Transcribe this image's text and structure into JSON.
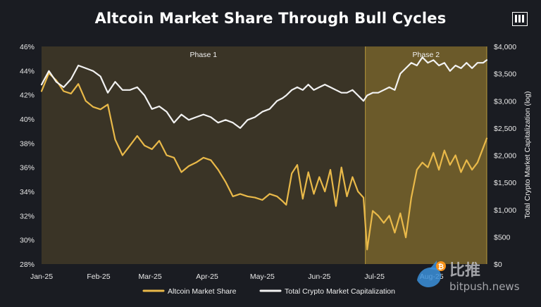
{
  "title": "Altcoin Market Share Through Bull Cycles",
  "logo": "brand-logo",
  "watermark": {
    "text_cn": "比推",
    "text_en": "bitpush.news"
  },
  "colors": {
    "background": "#1a1c22",
    "phase1_fill": "#3a3426",
    "phase2_fill": "#6b5a2a",
    "phase_border": "#b89a3c",
    "altcoin_line": "#e9b949",
    "cap_line": "#f2f2f2"
  },
  "chart_data": {
    "type": "line",
    "title": "Altcoin Market Share Through Bull Cycles",
    "x_ticks": [
      "Jan-25",
      "Feb-25",
      "Mar-25",
      "Apr-25",
      "May-25",
      "Jun-25",
      "Jul-25",
      "Aug-25"
    ],
    "x_range": [
      "2025-01-01",
      "2025-08-31"
    ],
    "y_left": {
      "ticks": [
        "28%",
        "30%",
        "32%",
        "34%",
        "36%",
        "38%",
        "40%",
        "42%",
        "44%",
        "46%"
      ],
      "ylim": [
        28,
        46
      ]
    },
    "y_right": {
      "label": "Total Crypto Market Capitalization (log)",
      "ticks": [
        "$0",
        "$500",
        "$1,000",
        "$1,500",
        "$2,000",
        "$2,500",
        "$3,000",
        "$3,500",
        "$4,000"
      ],
      "ylim": [
        0,
        4000
      ]
    },
    "phases": [
      {
        "label": "Phase 1",
        "start": "2025-01-01",
        "end": "2025-06-26"
      },
      {
        "label": "Phase 2",
        "start": "2025-06-26",
        "end": "2025-08-31"
      }
    ],
    "legend": {
      "position": "bottom-center"
    },
    "grid": false,
    "series": [
      {
        "name": "Altcoin Market Share",
        "axis": "left",
        "x": [
          "2025-01-01",
          "2025-01-05",
          "2025-01-09",
          "2025-01-13",
          "2025-01-17",
          "2025-01-21",
          "2025-01-25",
          "2025-01-29",
          "2025-02-02",
          "2025-02-06",
          "2025-02-10",
          "2025-02-14",
          "2025-02-18",
          "2025-02-22",
          "2025-02-26",
          "2025-03-02",
          "2025-03-06",
          "2025-03-10",
          "2025-03-14",
          "2025-03-18",
          "2025-03-22",
          "2025-03-26",
          "2025-03-30",
          "2025-04-03",
          "2025-04-07",
          "2025-04-11",
          "2025-04-15",
          "2025-04-19",
          "2025-04-23",
          "2025-04-27",
          "2025-05-01",
          "2025-05-05",
          "2025-05-09",
          "2025-05-12",
          "2025-05-14",
          "2025-05-17",
          "2025-05-20",
          "2025-05-23",
          "2025-05-26",
          "2025-05-29",
          "2025-06-01",
          "2025-06-04",
          "2025-06-07",
          "2025-06-10",
          "2025-06-13",
          "2025-06-16",
          "2025-06-19",
          "2025-06-22",
          "2025-06-25",
          "2025-06-27",
          "2025-06-30",
          "2025-07-03",
          "2025-07-06",
          "2025-07-09",
          "2025-07-12",
          "2025-07-15",
          "2025-07-18",
          "2025-07-21",
          "2025-07-24",
          "2025-07-27",
          "2025-07-30",
          "2025-08-02",
          "2025-08-05",
          "2025-08-08",
          "2025-08-11",
          "2025-08-14",
          "2025-08-17",
          "2025-08-20",
          "2025-08-23",
          "2025-08-26",
          "2025-08-29",
          "2025-08-31"
        ],
        "values": [
          42.3,
          43.8,
          43.2,
          42.3,
          42.1,
          42.9,
          41.5,
          41.0,
          40.8,
          41.2,
          38.3,
          37.0,
          37.8,
          38.6,
          37.8,
          37.5,
          38.2,
          37.0,
          36.8,
          35.6,
          36.1,
          36.4,
          36.8,
          36.6,
          35.8,
          34.8,
          33.6,
          33.8,
          33.6,
          33.5,
          33.3,
          33.8,
          33.6,
          33.2,
          32.9,
          35.5,
          36.2,
          33.4,
          35.6,
          33.8,
          35.2,
          34.0,
          35.8,
          32.8,
          36.0,
          33.6,
          35.2,
          34.0,
          33.5,
          29.2,
          32.4,
          32.0,
          31.4,
          32.0,
          30.6,
          32.2,
          30.2,
          33.5,
          35.8,
          36.4,
          36.0,
          37.2,
          35.8,
          37.4,
          36.2,
          37.0,
          35.6,
          36.6,
          35.8,
          36.4,
          37.6,
          38.4
        ]
      },
      {
        "name": "Total Crypto Market Capitalization",
        "axis": "right",
        "x": [
          "2025-01-01",
          "2025-01-05",
          "2025-01-09",
          "2025-01-13",
          "2025-01-17",
          "2025-01-21",
          "2025-01-25",
          "2025-01-29",
          "2025-02-02",
          "2025-02-06",
          "2025-02-10",
          "2025-02-14",
          "2025-02-18",
          "2025-02-22",
          "2025-02-26",
          "2025-03-02",
          "2025-03-06",
          "2025-03-10",
          "2025-03-14",
          "2025-03-18",
          "2025-03-22",
          "2025-03-26",
          "2025-03-30",
          "2025-04-03",
          "2025-04-07",
          "2025-04-11",
          "2025-04-15",
          "2025-04-19",
          "2025-04-23",
          "2025-04-27",
          "2025-05-01",
          "2025-05-05",
          "2025-05-09",
          "2025-05-12",
          "2025-05-14",
          "2025-05-17",
          "2025-05-20",
          "2025-05-23",
          "2025-05-26",
          "2025-05-29",
          "2025-06-01",
          "2025-06-04",
          "2025-06-07",
          "2025-06-10",
          "2025-06-13",
          "2025-06-16",
          "2025-06-19",
          "2025-06-22",
          "2025-06-25",
          "2025-06-27",
          "2025-06-30",
          "2025-07-03",
          "2025-07-06",
          "2025-07-09",
          "2025-07-12",
          "2025-07-15",
          "2025-07-18",
          "2025-07-21",
          "2025-07-24",
          "2025-07-27",
          "2025-07-30",
          "2025-08-02",
          "2025-08-05",
          "2025-08-08",
          "2025-08-11",
          "2025-08-14",
          "2025-08-17",
          "2025-08-20",
          "2025-08-23",
          "2025-08-26",
          "2025-08-29",
          "2025-08-31"
        ],
        "values": [
          3300,
          3550,
          3350,
          3250,
          3400,
          3650,
          3600,
          3550,
          3450,
          3150,
          3350,
          3200,
          3200,
          3250,
          3100,
          2850,
          2900,
          2800,
          2600,
          2750,
          2650,
          2700,
          2750,
          2700,
          2600,
          2650,
          2600,
          2500,
          2650,
          2700,
          2800,
          2850,
          3000,
          3050,
          3100,
          3200,
          3250,
          3200,
          3300,
          3200,
          3250,
          3300,
          3250,
          3200,
          3150,
          3150,
          3200,
          3100,
          3000,
          3100,
          3150,
          3150,
          3200,
          3250,
          3200,
          3500,
          3600,
          3700,
          3650,
          3800,
          3700,
          3750,
          3650,
          3700,
          3550,
          3650,
          3600,
          3700,
          3600,
          3700,
          3700,
          3750
        ]
      }
    ]
  }
}
